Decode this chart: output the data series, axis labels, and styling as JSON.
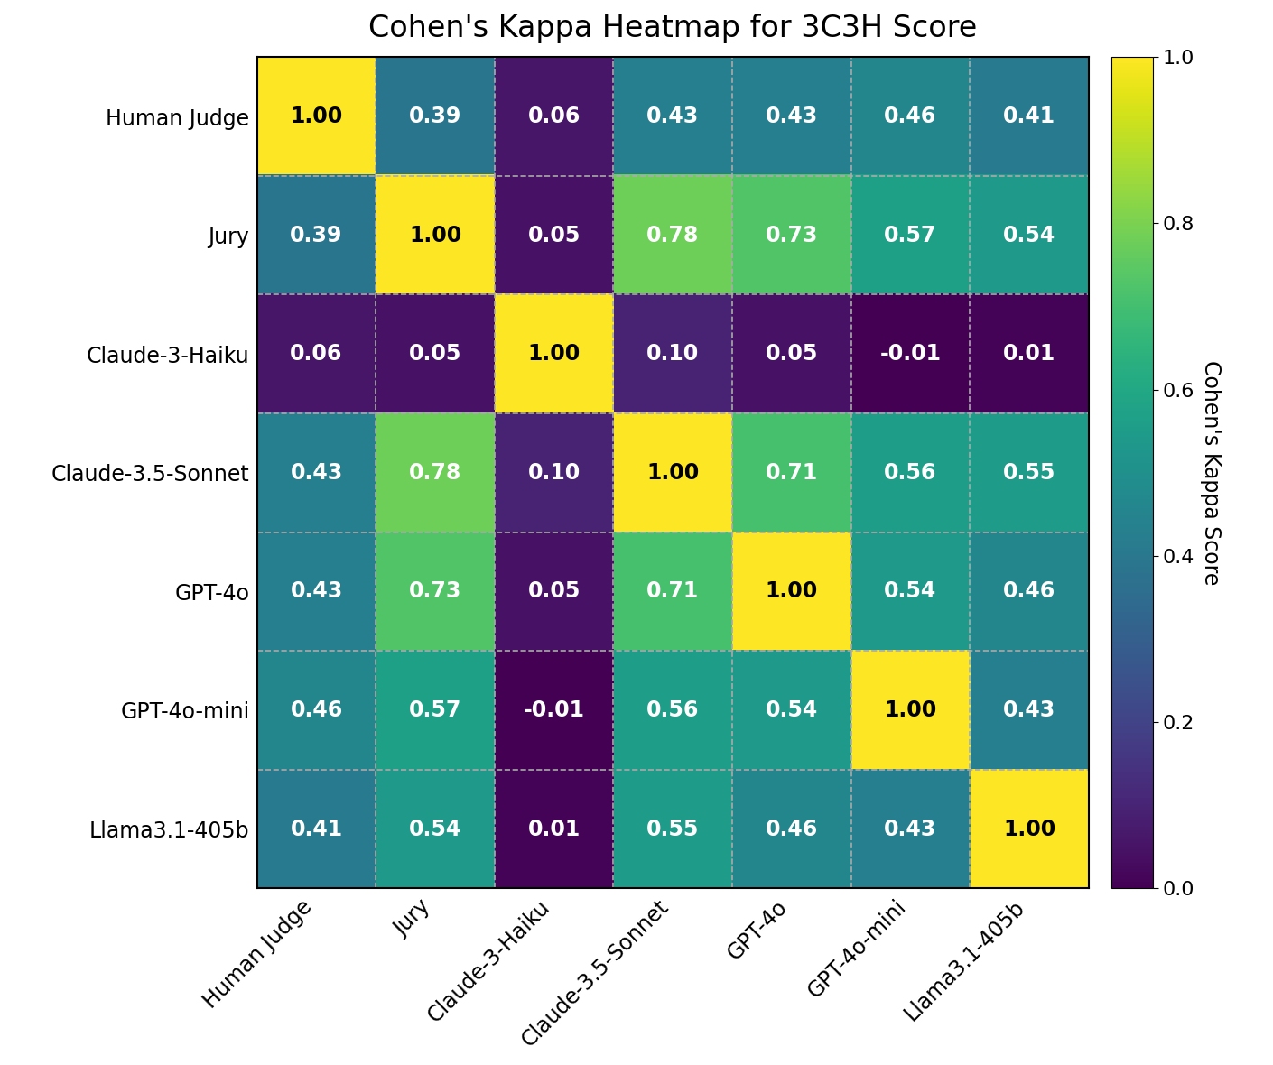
{
  "title": "Cohen's Kappa Heatmap for 3C3H Score",
  "labels": [
    "Human Judge",
    "Jury",
    "Claude-3-Haiku",
    "Claude-3.5-Sonnet",
    "GPT-4o",
    "GPT-4o-mini",
    "Llama3.1-405b"
  ],
  "matrix": [
    [
      1.0,
      0.39,
      0.06,
      0.43,
      0.43,
      0.46,
      0.41
    ],
    [
      0.39,
      1.0,
      0.05,
      0.78,
      0.73,
      0.57,
      0.54
    ],
    [
      0.06,
      0.05,
      1.0,
      0.1,
      0.05,
      -0.01,
      0.01
    ],
    [
      0.43,
      0.78,
      0.1,
      1.0,
      0.71,
      0.56,
      0.55
    ],
    [
      0.43,
      0.73,
      0.05,
      0.71,
      1.0,
      0.54,
      0.46
    ],
    [
      0.46,
      0.57,
      -0.01,
      0.56,
      0.54,
      1.0,
      0.43
    ],
    [
      0.41,
      0.54,
      0.01,
      0.55,
      0.46,
      0.43,
      1.0
    ]
  ],
  "cmap": "viridis",
  "vmin": 0.0,
  "vmax": 1.0,
  "colorbar_label": "Cohen's Kappa Score",
  "font_size_annot": 17,
  "font_size_title": 24,
  "font_size_labels": 17,
  "font_size_cbar": 17,
  "grid_color": "#aaaaaa",
  "grid_linestyle": "--",
  "grid_linewidth": 1.2,
  "background_color": "#ffffff",
  "text_color_light": "white",
  "text_color_dark": "black",
  "text_threshold": 0.65
}
